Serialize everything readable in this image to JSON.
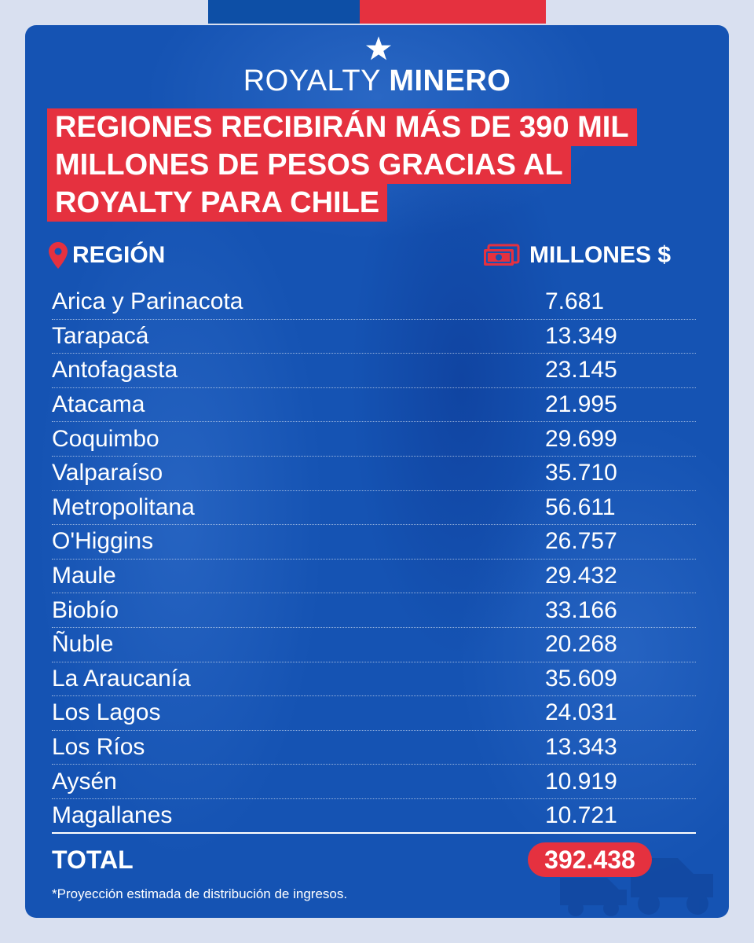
{
  "brand": {
    "light": "ROYALTY",
    "bold": "MINERO"
  },
  "headline": [
    "REGIONES RECIBIRÁN MÁS DE 390 MIL",
    "MILLONES DE PESOS GRACIAS AL",
    "ROYALTY PARA CHILE"
  ],
  "columns": {
    "region": "REGIÓN",
    "amount": "MILLONES $"
  },
  "rows": [
    {
      "region": "Arica y Parinacota",
      "amount": "7.681"
    },
    {
      "region": "Tarapacá",
      "amount": "13.349"
    },
    {
      "region": "Antofagasta",
      "amount": "23.145"
    },
    {
      "region": "Atacama",
      "amount": "21.995"
    },
    {
      "region": "Coquimbo",
      "amount": "29.699"
    },
    {
      "region": "Valparaíso",
      "amount": "35.710"
    },
    {
      "region": "Metropolitana",
      "amount": "56.611"
    },
    {
      "region": "O'Higgins",
      "amount": "26.757"
    },
    {
      "region": "Maule",
      "amount": "29.432"
    },
    {
      "region": "Biobío",
      "amount": "33.166"
    },
    {
      "region": "Ñuble",
      "amount": "20.268"
    },
    {
      "region": "La Araucanía",
      "amount": "35.609"
    },
    {
      "region": "Los Lagos",
      "amount": "24.031"
    },
    {
      "region": "Los Ríos",
      "amount": "13.343"
    },
    {
      "region": "Aysén",
      "amount": "10.919"
    },
    {
      "region": "Magallanes",
      "amount": "10.721"
    }
  ],
  "total": {
    "label": "TOTAL",
    "value": "392.438"
  },
  "footnote": "*Proyección estimada de distribución de ingresos.",
  "colors": {
    "blue": "#1553b3",
    "red": "#e5313f",
    "text": "#ffffff"
  },
  "icons": {
    "region": "location-pin-icon",
    "amount": "money-bill-icon",
    "logo": "star-icon",
    "decoration": "mining-truck-icon"
  }
}
